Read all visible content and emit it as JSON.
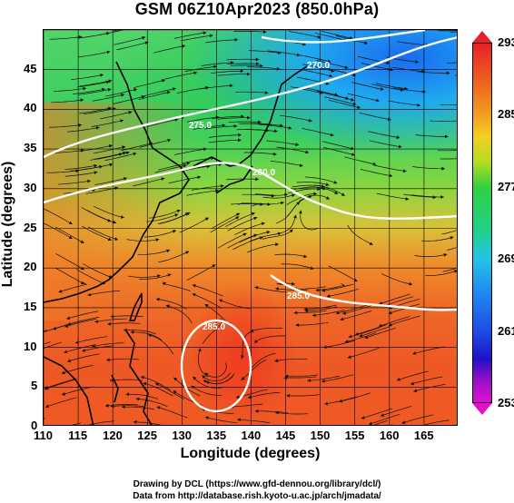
{
  "title": "GSM 06Z10Apr2023 (850.0hPa)",
  "xaxis": {
    "label": "Longitude (degrees)",
    "ticks": [
      "110",
      "115",
      "120",
      "125",
      "130",
      "135",
      "140",
      "145",
      "150",
      "155",
      "160",
      "165"
    ],
    "range": [
      110,
      170
    ]
  },
  "yaxis": {
    "label": "Latitude (degrees)",
    "ticks": [
      "0",
      "5",
      "10",
      "15",
      "20",
      "25",
      "30",
      "35",
      "40",
      "45"
    ],
    "range": [
      0,
      50
    ]
  },
  "colorbar": {
    "labels": [
      "293",
      "285",
      "277",
      "269",
      "261",
      "253"
    ],
    "range": [
      253,
      293
    ],
    "colors": [
      "#e8202a",
      "#f2a020",
      "#32d040",
      "#22c4e8",
      "#1e4ee6",
      "#e010d0"
    ]
  },
  "contours": [
    {
      "label": "275.0"
    },
    {
      "label": "280.0"
    },
    {
      "label": "285.0"
    },
    {
      "label": "270.0"
    }
  ],
  "credits": {
    "line1": "Drawing by DCL (https://www.gfd-dennou.org/library/dcl/)",
    "line2": "Data from http://database.rish.kyoto-u.ac.jp/arch/jmadata/"
  }
}
